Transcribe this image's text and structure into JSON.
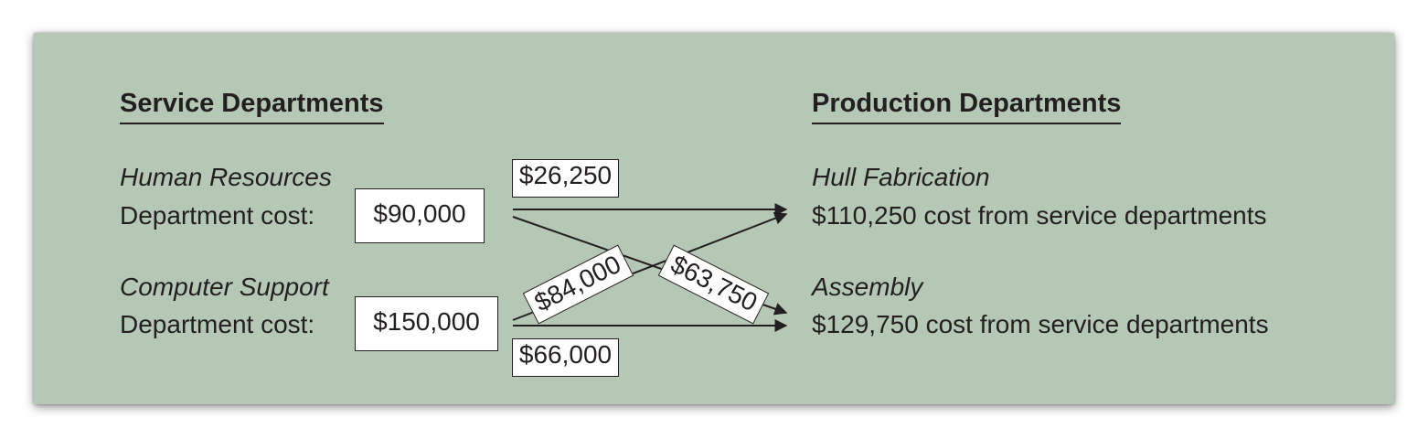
{
  "service": {
    "heading": "Service Departments",
    "hr": {
      "name": "Human Resources",
      "cost_label": "Department cost:",
      "cost_value": "$90,000"
    },
    "cs": {
      "name": "Computer Support",
      "cost_label": "Department cost:",
      "cost_value": "$150,000"
    }
  },
  "production": {
    "heading": "Production Departments",
    "hull": {
      "name": "Hull Fabrication",
      "cost_text": "$110,250 cost from service departments"
    },
    "assembly": {
      "name": "Assembly",
      "cost_text": "$129,750 cost from service departments"
    }
  },
  "flows": {
    "hr_to_hull": "$26,250",
    "hr_to_assembly": "$63,750",
    "cs_to_hull": "$84,000",
    "cs_to_assembly": "$66,000"
  },
  "colors": {
    "panel": "#b5c7b5",
    "ink": "#231f20",
    "box": "#ffffff"
  }
}
